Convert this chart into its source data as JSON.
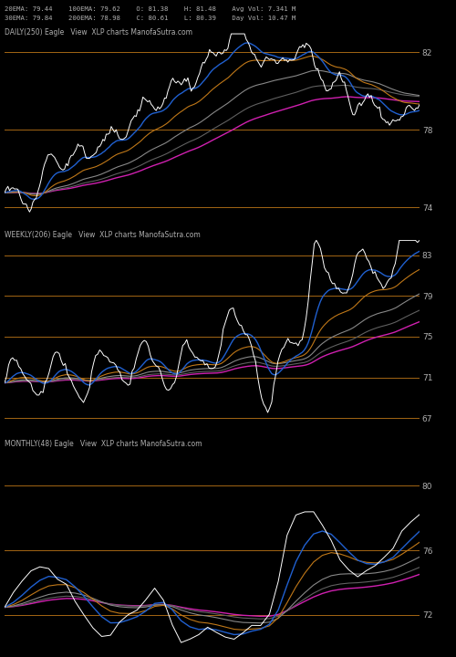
{
  "background_color": "#000000",
  "text_color": "#b0b0b0",
  "header_line1": "20EMA: 79.44    100EMA: 79.62    O: 81.38    H: 81.48    Avg Vol: 7.341 M",
  "header_line2": "30EMA: 79.84    200EMA: 78.98    C: 80.61    L: 80.39    Day Vol: 10.47 M",
  "panels": [
    {
      "label": "DAILY(250) Eagle   View  XLP charts ManofaSutra.com",
      "ylim": [
        73.0,
        83.0
      ],
      "yticks": [
        74,
        78,
        82
      ],
      "hlines": [
        74.0,
        78.0,
        82.0
      ],
      "hline_color": "#c07818"
    },
    {
      "label": "WEEKLY(206) Eagle   View  XLP charts ManofaSutra.com",
      "ylim": [
        65.5,
        84.5
      ],
      "yticks": [
        67,
        71,
        75,
        79,
        83
      ],
      "hlines": [
        67.0,
        71.0,
        75.0,
        79.0,
        83.0
      ],
      "hline_color": "#c07818"
    },
    {
      "label": "MONTHLY(48) Eagle   View  XLP charts ManofaSutra.com",
      "ylim": [
        70.0,
        82.0
      ],
      "yticks": [
        72,
        76,
        80
      ],
      "hlines": [
        72.0,
        76.0,
        80.0
      ],
      "hline_color": "#c07818"
    }
  ],
  "price_color": "#ffffff",
  "blue_color": "#2060d0",
  "orange_color": "#c07818",
  "magenta_color": "#d020b0",
  "gray1": "#888888",
  "gray2": "#606060",
  "gray3": "#404040"
}
